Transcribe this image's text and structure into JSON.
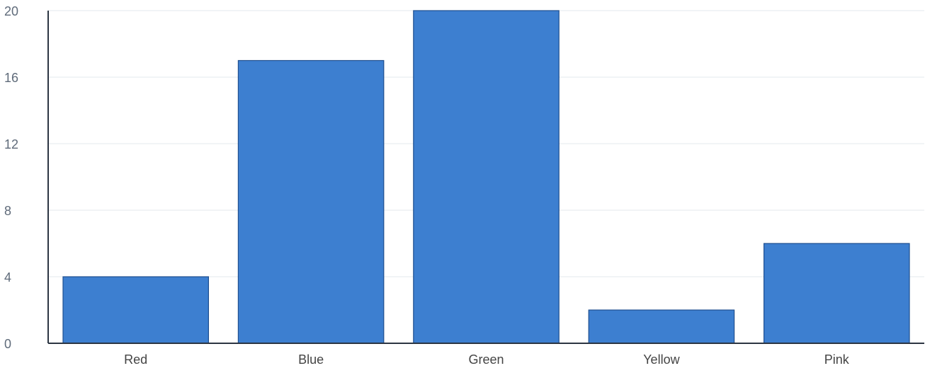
{
  "chart_data": {
    "type": "bar",
    "title": "",
    "xlabel": "",
    "ylabel": "",
    "categories": [
      "Red",
      "Blue",
      "Green",
      "Yellow",
      "Pink"
    ],
    "values": [
      4,
      17,
      20,
      2,
      6
    ],
    "ylim": [
      0,
      20
    ],
    "yticks": [
      0,
      4,
      8,
      12,
      16,
      20
    ],
    "grid": true,
    "legend": "none",
    "colors": {
      "bar": "#3d7fd0",
      "bar_border": "#1f4f8f"
    }
  }
}
